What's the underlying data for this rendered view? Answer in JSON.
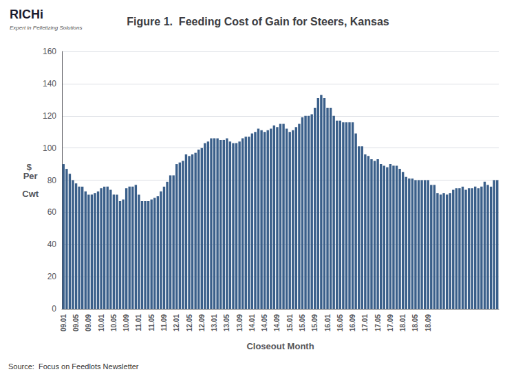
{
  "chart_data": {
    "type": "bar",
    "title": "Figure 1.  Feeding Cost of Gain for Steers, Kansas",
    "xlabel": "Closeout Month",
    "ylabel": "$ \nPer\n \nCwt",
    "annotations": [
      "Source:  Focus on Feedlots Newsletter",
      "RICHi",
      "Expert in Pelletizing Solutions"
    ],
    "categories": [
      "09.01",
      null,
      null,
      null,
      "09.05",
      null,
      null,
      null,
      "09.09",
      null,
      null,
      null,
      "10.01",
      null,
      null,
      null,
      "10.05",
      null,
      null,
      null,
      "10.09",
      null,
      null,
      null,
      "11.01",
      null,
      null,
      null,
      "11.05",
      null,
      null,
      null,
      "11.09",
      null,
      null,
      null,
      "12.01",
      null,
      null,
      null,
      "12.05",
      null,
      null,
      null,
      "12.09",
      null,
      null,
      null,
      "13.01",
      null,
      null,
      null,
      "13.05",
      null,
      null,
      null,
      "13.09",
      null,
      null,
      null,
      "14.01",
      null,
      null,
      null,
      "14.05",
      null,
      null,
      null,
      "14.09",
      null,
      null,
      null,
      "15.01",
      null,
      null,
      null,
      "15.05",
      null,
      null,
      null,
      "15.09",
      null,
      null,
      null,
      "16.01",
      null,
      null,
      null,
      "16.05",
      null,
      null,
      null,
      "16.09",
      null,
      null,
      null,
      "17.01",
      null,
      null,
      null,
      "17.05",
      null,
      null,
      null,
      "17.09",
      null,
      null,
      null,
      "18.01",
      null,
      null,
      null,
      "18.05",
      null,
      null,
      null,
      "18.09",
      null,
      null,
      null,
      null,
      null,
      null,
      null,
      null,
      null,
      null,
      null,
      null,
      null,
      null,
      null,
      null,
      null,
      null,
      null,
      null,
      null,
      null
    ],
    "values": [
      90,
      87,
      84,
      80,
      78,
      76,
      76,
      73,
      71,
      71,
      72,
      73,
      75,
      76,
      76,
      74,
      71,
      71,
      67,
      68,
      75,
      76,
      76,
      77,
      71,
      67,
      67,
      67,
      68,
      69,
      70,
      73,
      76,
      79,
      83,
      83,
      90,
      91,
      92,
      96,
      95,
      96,
      97,
      99,
      100,
      103,
      104,
      106,
      106,
      106,
      105,
      105,
      106,
      104,
      103,
      103,
      104,
      106,
      107,
      107,
      109,
      110,
      112,
      111,
      110,
      111,
      112,
      114,
      113,
      115,
      115,
      112,
      110,
      111,
      113,
      115,
      119,
      120,
      120,
      121,
      125,
      131,
      133,
      131,
      125,
      125,
      120,
      117,
      117,
      116,
      116,
      116,
      116,
      109,
      101,
      101,
      96,
      95,
      93,
      92,
      93,
      90,
      89,
      88,
      90,
      89,
      89,
      87,
      85,
      82,
      81,
      81,
      80,
      80,
      80,
      80,
      80,
      77,
      77,
      72,
      71,
      72,
      71,
      72,
      74,
      75,
      75,
      76,
      74,
      75,
      75,
      76,
      75,
      76,
      79,
      77,
      76,
      80,
      80
    ],
    "color": "#3A5F8A",
    "ylim": [
      0,
      160
    ],
    "yticks": [
      0,
      20,
      40,
      60,
      80,
      100,
      120,
      140,
      160
    ],
    "grid": true
  }
}
